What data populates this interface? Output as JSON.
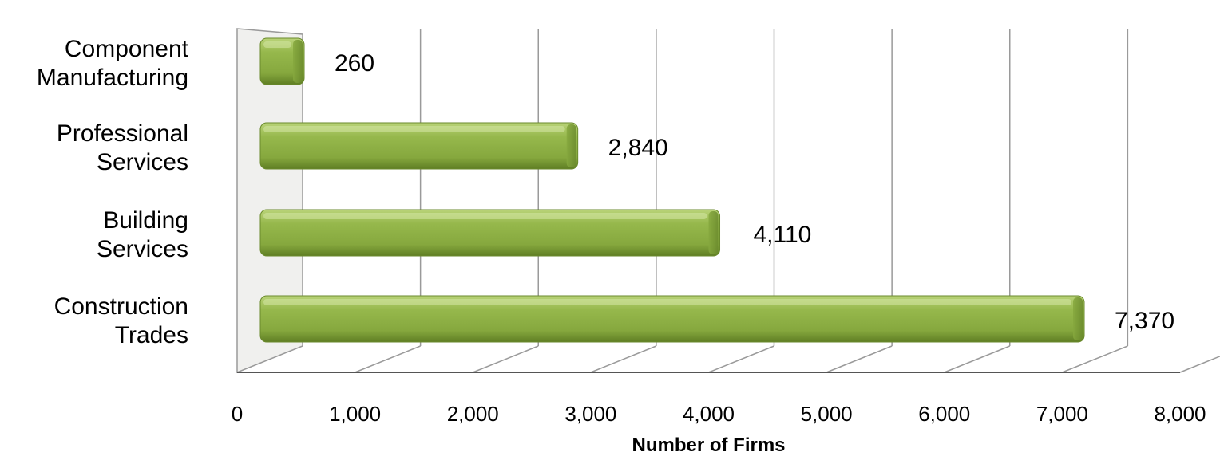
{
  "chart_data": {
    "type": "bar",
    "orientation": "horizontal",
    "categories": [
      [
        "Component",
        "Manufacturing"
      ],
      [
        "Professional",
        "Services"
      ],
      [
        "Building",
        "Services"
      ],
      [
        "Construction",
        "Trades"
      ]
    ],
    "values": [
      260,
      2840,
      4110,
      7370
    ],
    "value_labels": [
      "260",
      "2,840",
      "4,110",
      "7,370"
    ],
    "title": "",
    "xlabel": "Number of Firms",
    "ylabel": "",
    "xlim": [
      0,
      8000
    ],
    "x_ticks": [
      0,
      1000,
      2000,
      3000,
      4000,
      5000,
      6000,
      7000,
      8000
    ],
    "x_tick_labels": [
      "0",
      "1,000",
      "2,000",
      "3,000",
      "4,000",
      "5,000",
      "6,000",
      "7,000",
      "8,000"
    ],
    "gridlines": true,
    "legend": "none",
    "style": "3d",
    "colors": {
      "bar": "#8fb04a",
      "bar_light": "#a9c862",
      "bar_dark": "#6a8a2c",
      "grid": "#9a9a9a",
      "wall": "#f0f0ee",
      "text": "#000000"
    }
  }
}
